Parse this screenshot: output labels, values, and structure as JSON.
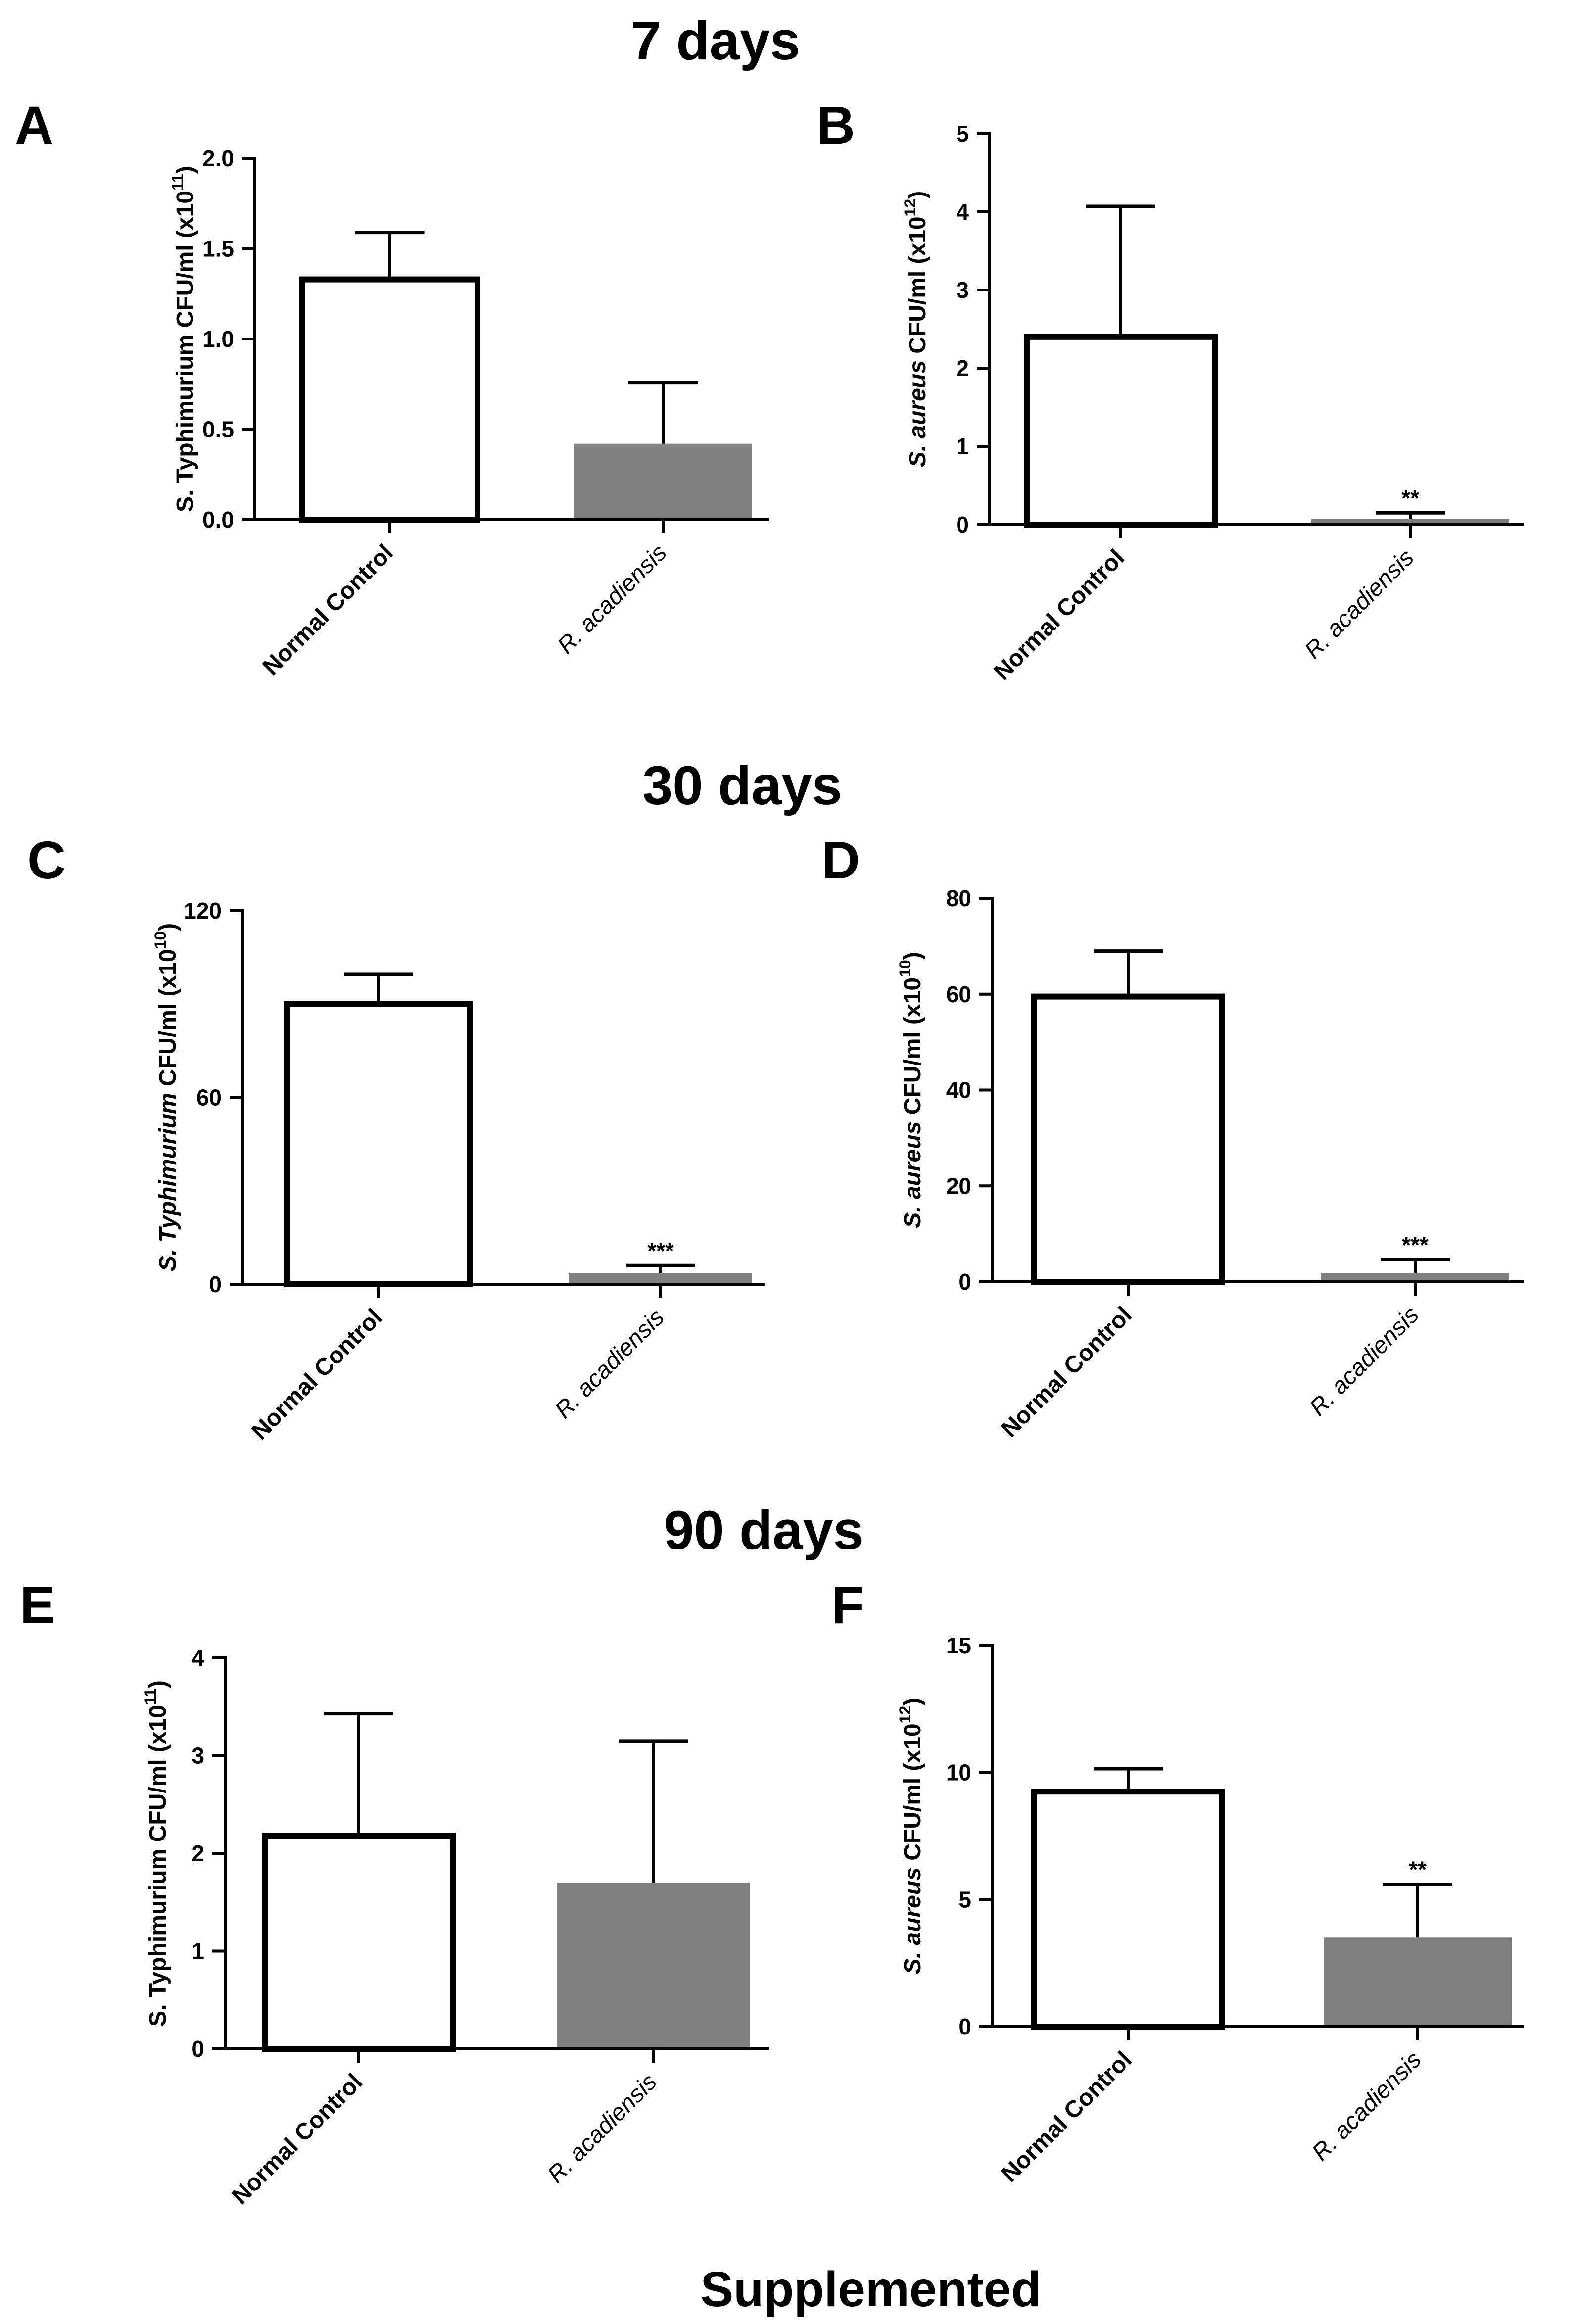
{
  "footer": "Supplemented",
  "sections": [
    "7 days",
    "30 days",
    "90 days"
  ],
  "colors": {
    "control_fill": "#ffffff",
    "treated_fill": "#808080",
    "axis": "#000000"
  },
  "chart_data": [
    {
      "panel": "A",
      "type": "bar",
      "ylabel_prefix": "S.",
      "ylabel_prefix_italic": false,
      "ylabel_main": " Typhimurium CFU/ml (x10",
      "ylabel_exp": "11",
      "ylim": [
        0,
        2.0
      ],
      "yticks": [
        "0.0",
        "0.5",
        "1.0",
        "1.5",
        "2.0"
      ],
      "categories": [
        "Normal Control",
        "R. acadiensis"
      ],
      "values": [
        1.33,
        0.42
      ],
      "errors": [
        0.26,
        0.34
      ],
      "significance": [
        "",
        ""
      ]
    },
    {
      "panel": "B",
      "type": "bar",
      "ylabel_prefix": "S. aureus",
      "ylabel_prefix_italic": true,
      "ylabel_main": " CFU/ml (x10",
      "ylabel_exp": "12",
      "ylim": [
        0,
        5
      ],
      "yticks": [
        "0",
        "1",
        "2",
        "3",
        "4",
        "5"
      ],
      "categories": [
        "Normal Control",
        "R. acadiensis"
      ],
      "values": [
        2.4,
        0.07
      ],
      "errors": [
        1.67,
        0.08
      ],
      "significance": [
        "",
        "**"
      ]
    },
    {
      "panel": "C",
      "type": "bar",
      "ylabel_prefix": "S. Typhimurium",
      "ylabel_prefix_italic": true,
      "ylabel_main": " CFU/ml (x10",
      "ylabel_exp": "10",
      "ylim": [
        0,
        120
      ],
      "yticks": [
        "0",
        "60",
        "120"
      ],
      "categories": [
        "Normal Control",
        "R. acadiensis"
      ],
      "values": [
        90,
        3.5
      ],
      "errors": [
        9.5,
        2.5
      ],
      "significance": [
        "",
        "***"
      ]
    },
    {
      "panel": "D",
      "type": "bar",
      "ylabel_prefix": "S. aureus",
      "ylabel_prefix_italic": true,
      "ylabel_main": " CFU/ml (x10",
      "ylabel_exp": "10",
      "ylim": [
        0,
        80
      ],
      "yticks": [
        "0",
        "20",
        "40",
        "60",
        "80"
      ],
      "categories": [
        "Normal Control",
        "R. acadiensis"
      ],
      "values": [
        59.5,
        1.8
      ],
      "errors": [
        9.5,
        2.8
      ],
      "significance": [
        "",
        "***"
      ]
    },
    {
      "panel": "E",
      "type": "bar",
      "ylabel_prefix": "S.",
      "ylabel_prefix_italic": false,
      "ylabel_main": " Typhimurium CFU/ml (x10",
      "ylabel_exp": "11",
      "ylim": [
        0,
        4
      ],
      "yticks": [
        "0",
        "1",
        "2",
        "3",
        "4"
      ],
      "categories": [
        "Normal Control",
        "R. acadiensis"
      ],
      "values": [
        2.18,
        1.7
      ],
      "errors": [
        1.25,
        1.45
      ],
      "significance": [
        "",
        ""
      ]
    },
    {
      "panel": "F",
      "type": "bar",
      "ylabel_prefix": "S. aureus",
      "ylabel_prefix_italic": true,
      "ylabel_main": " CFU/ml (x10",
      "ylabel_exp": "12",
      "ylim": [
        0,
        15
      ],
      "yticks": [
        "0",
        "5",
        "10",
        "15"
      ],
      "categories": [
        "Normal Control",
        "R. acadiensis"
      ],
      "values": [
        9.25,
        3.5
      ],
      "errors": [
        0.9,
        2.1
      ],
      "significance": [
        "",
        "**"
      ]
    }
  ]
}
